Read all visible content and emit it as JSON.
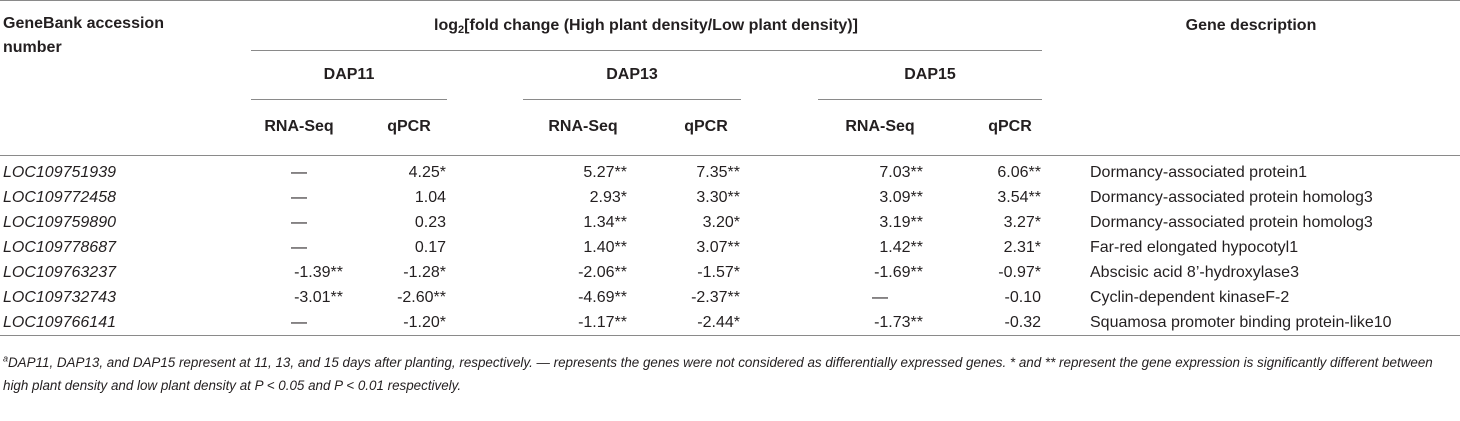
{
  "header": {
    "accession_label": "GeneBank accession number",
    "fold_change_prefix": "log",
    "fold_change_subscript": "2",
    "fold_change_suffix": "[fold change (High plant density/Low plant density)]",
    "description_label": "Gene description",
    "groups": [
      {
        "label": "DAP11",
        "columns": [
          "RNA-Seq",
          "qPCR"
        ]
      },
      {
        "label": "DAP13",
        "columns": [
          "RNA-Seq",
          "qPCR"
        ]
      },
      {
        "label": "DAP15",
        "columns": [
          "RNA-Seq",
          "qPCR"
        ]
      }
    ]
  },
  "rows": [
    {
      "accession": "LOC109751939",
      "values": [
        "—",
        "4.25*",
        "5.27**",
        "7.35**",
        "7.03**",
        "6.06**"
      ],
      "description": "Dormancy-associated protein1"
    },
    {
      "accession": "LOC109772458",
      "values": [
        "—",
        "1.04",
        "2.93*",
        "3.30**",
        "3.09**",
        "3.54**"
      ],
      "description": "Dormancy-associated protein homolog3"
    },
    {
      "accession": "LOC109759890",
      "values": [
        "—",
        "0.23",
        "1.34**",
        "3.20*",
        "3.19**",
        "3.27*"
      ],
      "description": "Dormancy-associated protein homolog3"
    },
    {
      "accession": "LOC109778687",
      "values": [
        "—",
        "0.17",
        "1.40**",
        "3.07**",
        "1.42**",
        "2.31*"
      ],
      "description": "Far-red elongated hypocotyl1"
    },
    {
      "accession": "LOC109763237",
      "values": [
        "-1.39**",
        "-1.28*",
        "-2.06**",
        "-1.57*",
        "-1.69**",
        "-0.97*"
      ],
      "description": "Abscisic acid 8’-hydroxylase3"
    },
    {
      "accession": "LOC109732743",
      "values": [
        "-3.01**",
        "-2.60**",
        "-4.69**",
        "-2.37**",
        "—",
        "-0.10"
      ],
      "description": "Cyclin-dependent kinaseF-2"
    },
    {
      "accession": "LOC109766141",
      "values": [
        "—",
        "-1.20*",
        "-1.17**",
        "-2.44*",
        "-1.73**",
        "-0.32"
      ],
      "description": "Squamosa promoter binding protein-like10"
    }
  ],
  "footnote": {
    "marker": "a",
    "text": "DAP11, DAP13, and DAP15 represent at 11, 13, and 15 days after planting, respectively. — represents the genes were not considered as differentially expressed genes. * and ** represent the gene expression is significantly different between high plant density and low plant density at P < 0.05 and P < 0.01 respectively."
  },
  "colors": {
    "text": "#231f20",
    "rule": "#8a8a8a"
  }
}
